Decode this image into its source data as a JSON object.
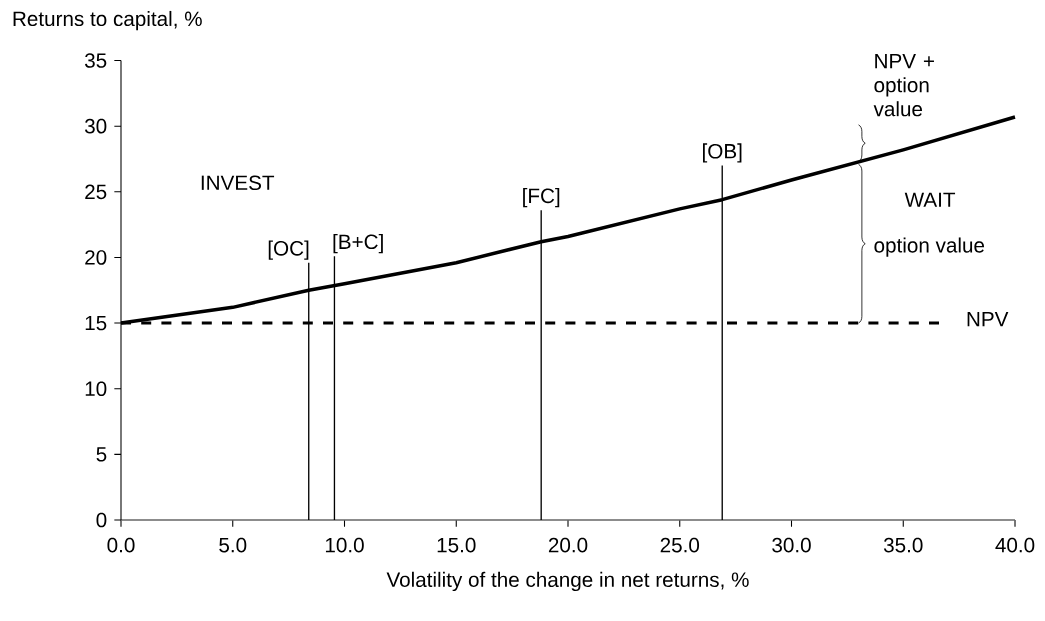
{
  "chart_data": {
    "type": "line",
    "xlabel": "Volatility of the change in net returns, %",
    "ylabel": "Returns to capital, %",
    "xlim": [
      0,
      40
    ],
    "ylim": [
      0,
      35
    ],
    "xticks": [
      {
        "value": 0,
        "label": "0.0"
      },
      {
        "value": 5,
        "label": "5.0"
      },
      {
        "value": 10,
        "label": "10.0"
      },
      {
        "value": 15,
        "label": "15.0"
      },
      {
        "value": 20,
        "label": "20.0"
      },
      {
        "value": 25,
        "label": "25.0"
      },
      {
        "value": 30,
        "label": "30.0"
      },
      {
        "value": 35,
        "label": "35.0"
      },
      {
        "value": 40,
        "label": "40.0"
      }
    ],
    "yticks": [
      0,
      5,
      10,
      15,
      20,
      25,
      30,
      35
    ],
    "series": [
      {
        "color": "#000000",
        "x": [
          0,
          5,
          8.4,
          10,
          15,
          18.8,
          20,
          25,
          26.9,
          30,
          35,
          40
        ],
        "values": [
          15,
          16.2,
          17.5,
          18.0,
          19.6,
          21.2,
          21.6,
          23.7,
          24.4,
          25.9,
          28.2,
          30.7
        ]
      },
      {
        "name": "NPV",
        "color": "#000000",
        "line_style": "dashed",
        "x": [
          0,
          36.6
        ],
        "values": [
          15,
          15
        ]
      },
      {
        "name": "[OC]",
        "color": "#000000",
        "x": [
          8.4,
          8.4
        ],
        "values": [
          0,
          19.6
        ]
      },
      {
        "name": "[B+C]",
        "color": "#000000",
        "x": [
          9.55,
          9.55
        ],
        "values": [
          0,
          20.1
        ]
      },
      {
        "name": "[FC]",
        "color": "#000000",
        "x": [
          18.8,
          18.8
        ],
        "values": [
          0,
          23.6
        ]
      },
      {
        "name": "[OB]",
        "color": "#000000",
        "x": [
          26.9,
          26.9
        ],
        "values": [
          0,
          27.0
        ]
      }
    ],
    "annotations": [
      "INVEST",
      "WAIT",
      "option value",
      "NPV + option value"
    ]
  }
}
